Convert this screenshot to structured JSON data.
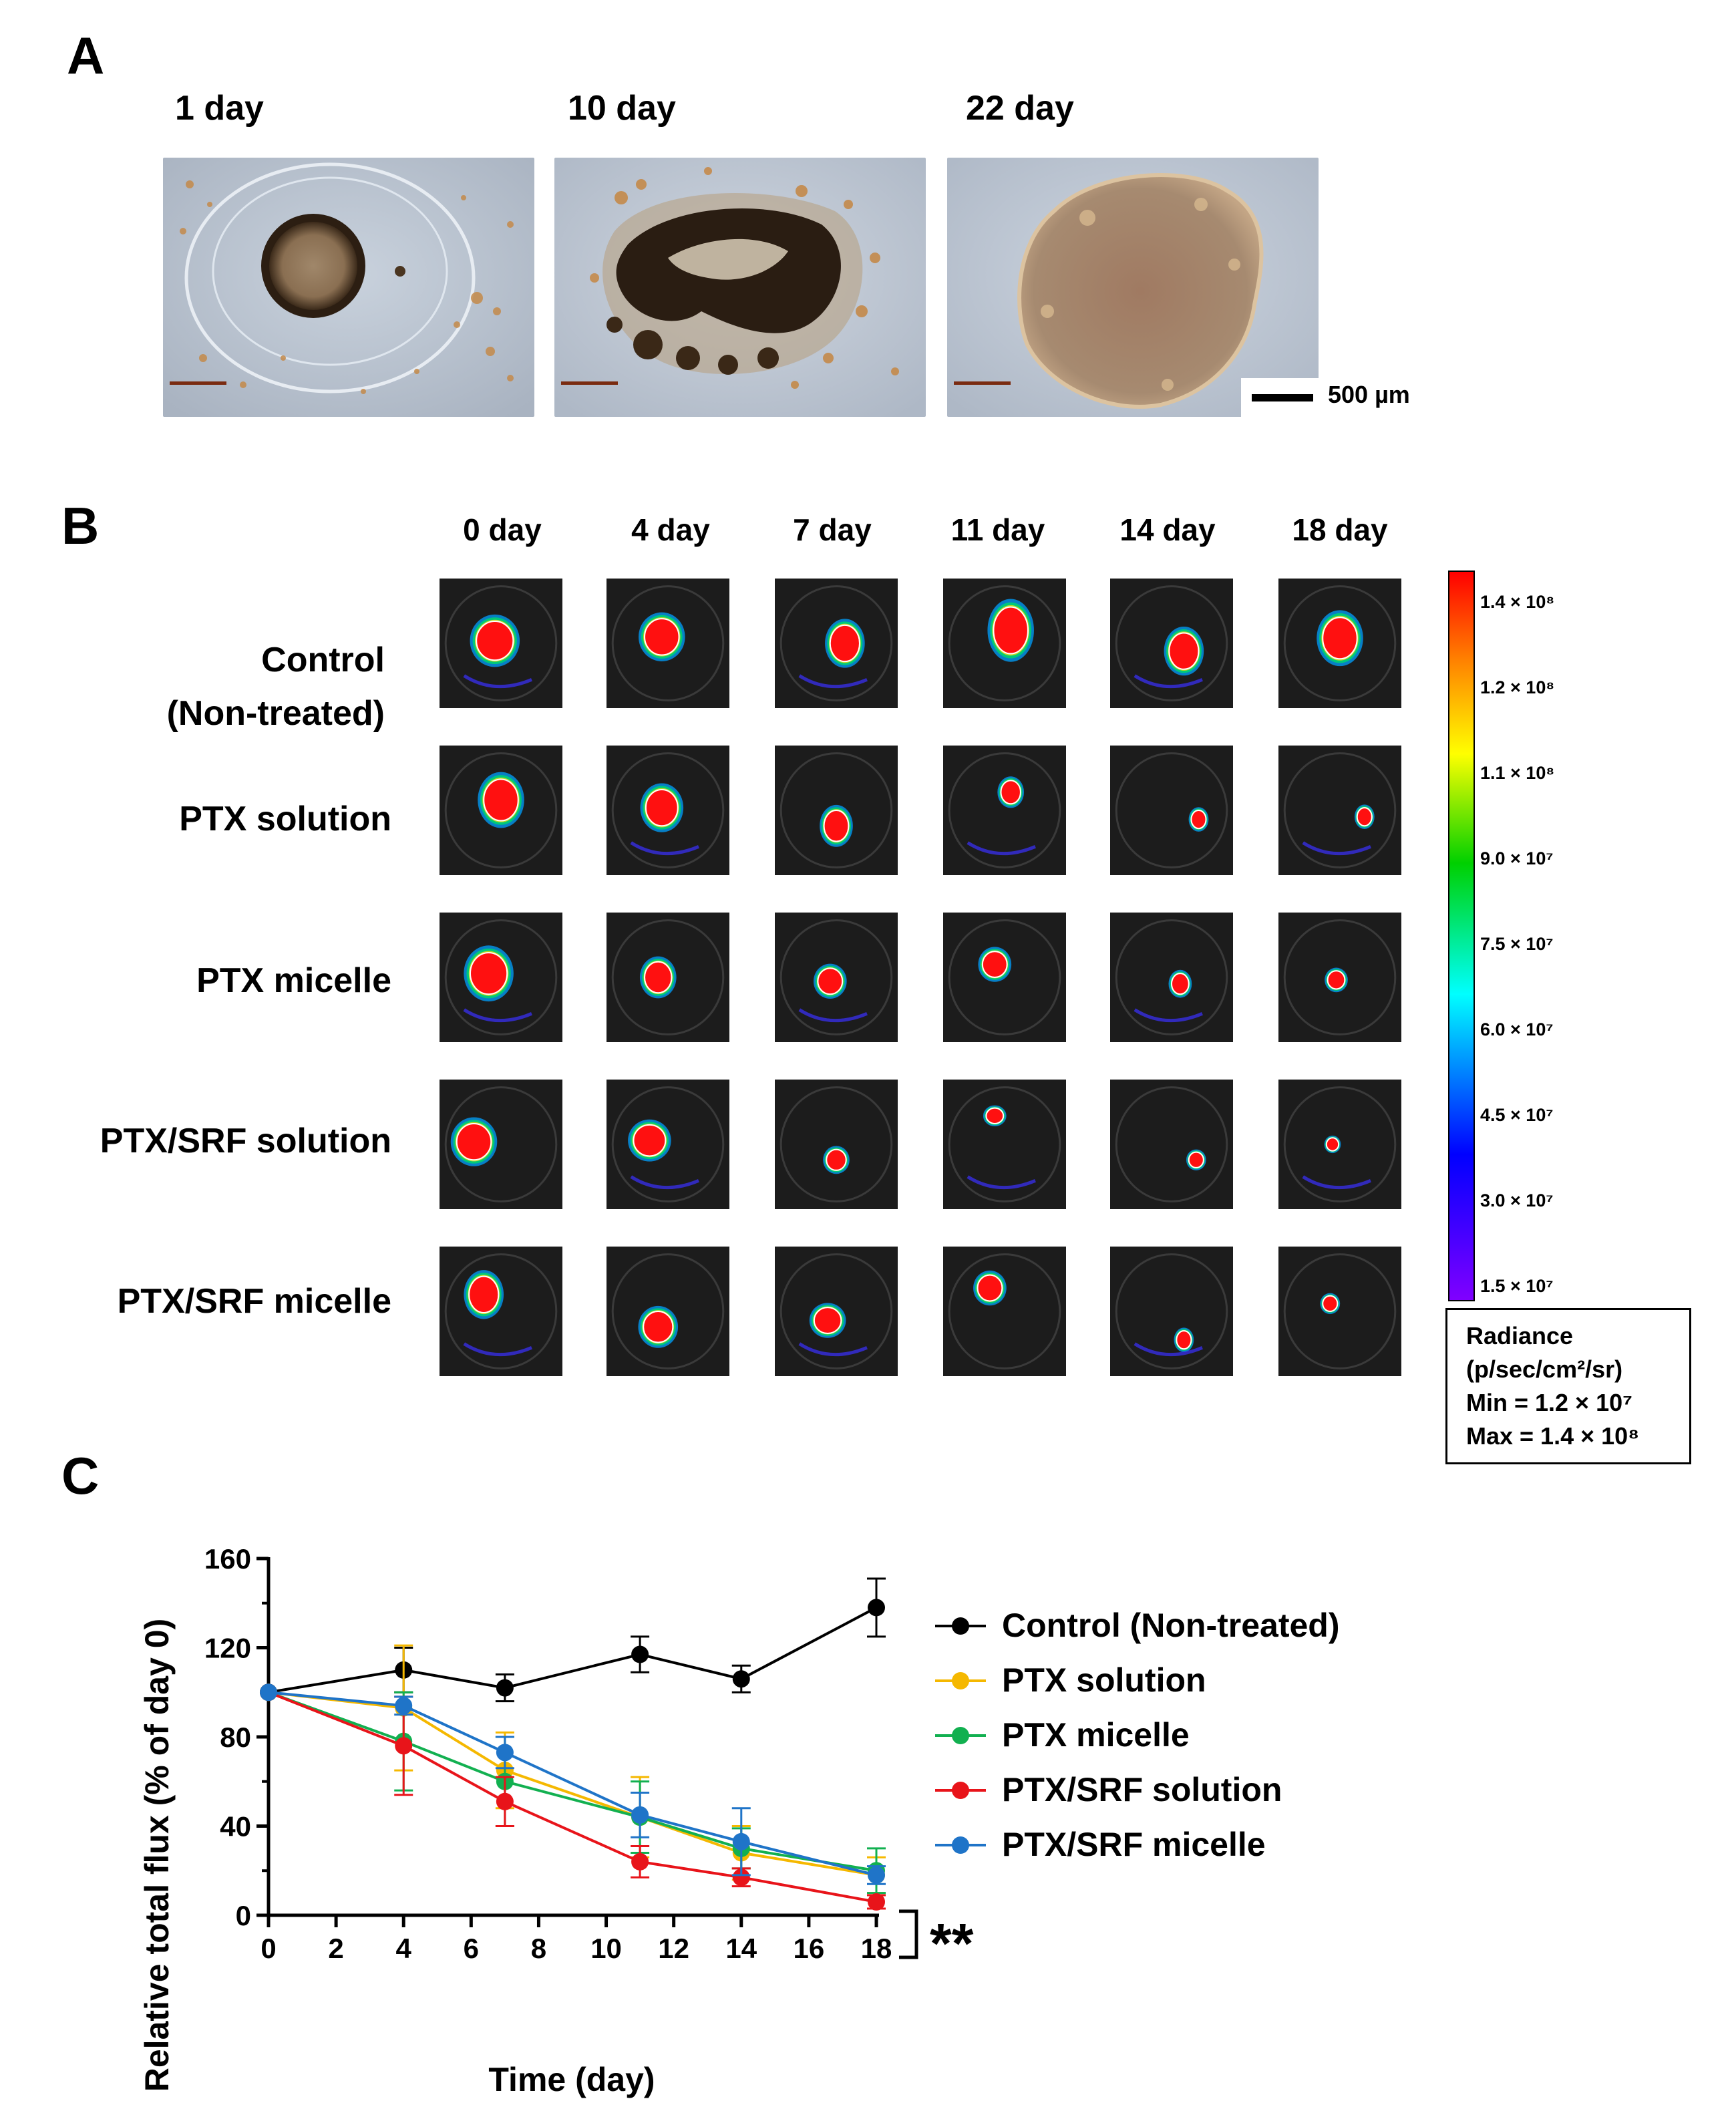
{
  "panel_a": {
    "letter": "A",
    "images": [
      {
        "label": "1 day",
        "icon": "spheroid-micrograph-day1"
      },
      {
        "label": "10 day",
        "icon": "spheroid-micrograph-day10"
      },
      {
        "label": "22 day",
        "icon": "spheroid-micrograph-day22"
      }
    ],
    "scale_label": "500 µm"
  },
  "panel_b": {
    "letter": "B",
    "columns": [
      "0 day",
      "4 day",
      "7 day",
      "11 day",
      "14 day",
      "18 day"
    ],
    "rows": [
      {
        "label_line1": "Control",
        "label_line2": "(Non-treated)"
      },
      {
        "label_line1": "PTX solution",
        "label_line2": ""
      },
      {
        "label_line1": "PTX micelle",
        "label_line2": ""
      },
      {
        "label_line1": "PTX/SRF solution",
        "label_line2": ""
      },
      {
        "label_line1": "PTX/SRF micelle",
        "label_line2": ""
      }
    ],
    "colorbar": {
      "ticks": [
        "1.4 × 10⁸",
        "1.2 × 10⁸",
        "1.1 × 10⁸",
        "9.0 × 10⁷",
        "7.5 × 10⁷",
        "6.0 × 10⁷",
        "4.5 × 10⁷",
        "3.0 × 10⁷",
        "1.5 × 10⁷"
      ],
      "colors": [
        "#ff0000",
        "#ff8000",
        "#ffff00",
        "#00d000",
        "#00ffff",
        "#0000ff",
        "#8000ff"
      ]
    },
    "radiance_box": {
      "line1": "Radiance",
      "line2": "(p/sec/cm²/sr)",
      "line3": "Min = 1.2 × 10⁷",
      "line4": "Max = 1.4 × 10⁸"
    }
  },
  "panel_c": {
    "letter": "C",
    "significance": "**"
  },
  "chart_data": {
    "type": "line",
    "xlabel": "Time (day)",
    "ylabel": "Relative total flux (% of day 0)",
    "xlim": [
      0,
      18
    ],
    "ylim": [
      0,
      160
    ],
    "xticks": [
      "0",
      "2",
      "4",
      "6",
      "8",
      "10",
      "12",
      "14",
      "16",
      "18"
    ],
    "yticks": [
      "0",
      "40",
      "80",
      "120",
      "160"
    ],
    "x": [
      0,
      4,
      7,
      11,
      14,
      18
    ],
    "legend_position": "right",
    "series": [
      {
        "name": "Control (Non-treated)",
        "color": "#000000",
        "values": [
          100,
          110,
          102,
          117,
          106,
          138
        ],
        "errors": [
          0,
          10,
          6,
          8,
          6,
          13
        ]
      },
      {
        "name": "PTX solution",
        "color": "#f5b800",
        "values": [
          100,
          93,
          65,
          44,
          28,
          18
        ],
        "errors": [
          0,
          28,
          17,
          18,
          12,
          8
        ]
      },
      {
        "name": "PTX micelle",
        "color": "#12b050",
        "values": [
          100,
          78,
          60,
          44,
          30,
          20
        ],
        "errors": [
          0,
          22,
          20,
          16,
          9,
          10
        ]
      },
      {
        "name": "PTX/SRF solution",
        "color": "#e8141a",
        "values": [
          100,
          76,
          51,
          24,
          17,
          6
        ],
        "errors": [
          0,
          22,
          11,
          7,
          4,
          3
        ]
      },
      {
        "name": "PTX/SRF micelle",
        "color": "#1f74c8",
        "values": [
          100,
          94,
          73,
          45,
          33,
          18
        ],
        "errors": [
          0,
          4,
          7,
          10,
          15,
          4
        ]
      }
    ]
  }
}
